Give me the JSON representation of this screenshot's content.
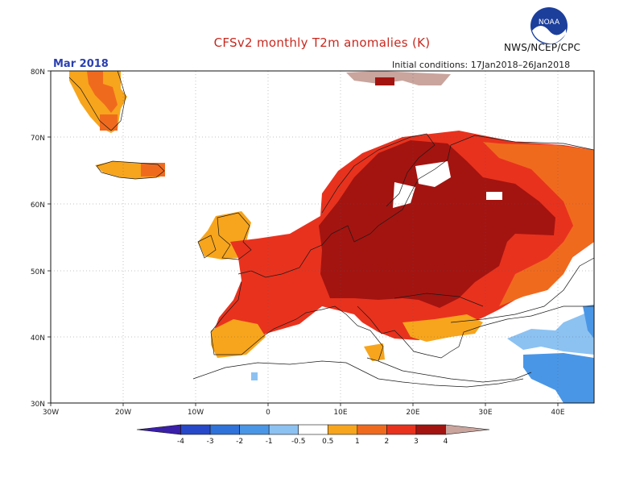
{
  "header": {
    "title": "CFSv2 monthly T2m anomalies (K)",
    "month": "Mar 2018",
    "initial_conditions": "Initial conditions: 17Jan2018–26Jan2018",
    "agency": "NWS/NCEP/CPC",
    "logo_text": "NOAA"
  },
  "map": {
    "lat_labels": [
      "80N",
      "70N",
      "60N",
      "50N",
      "40N",
      "30N"
    ],
    "lon_labels": [
      "30W",
      "20W",
      "10W",
      "0",
      "10E",
      "20E",
      "30E",
      "40E"
    ],
    "extent": {
      "lon": [
        -30,
        45
      ],
      "lat": [
        30,
        80
      ]
    }
  },
  "colorbar": {
    "labels": [
      "-4",
      "-3",
      "-2",
      "-1",
      "-0.5",
      "0.5",
      "1",
      "2",
      "3",
      "4"
    ],
    "colors": [
      "#3a1fa8",
      "#2748c9",
      "#2f72d9",
      "#4a96e6",
      "#8cc2f2",
      "#ffffff",
      "#f7a51c",
      "#f06a1e",
      "#e8321e",
      "#a31410",
      "#c9a59e"
    ]
  },
  "legend_colors": {
    "orange": "#f7a51c",
    "orange_red": "#f06a1e",
    "red": "#e8321e",
    "dark_red": "#a31410",
    "light_blue": "#8cc2f2",
    "mid_blue": "#4a96e6",
    "brown": "#c9a59e"
  }
}
